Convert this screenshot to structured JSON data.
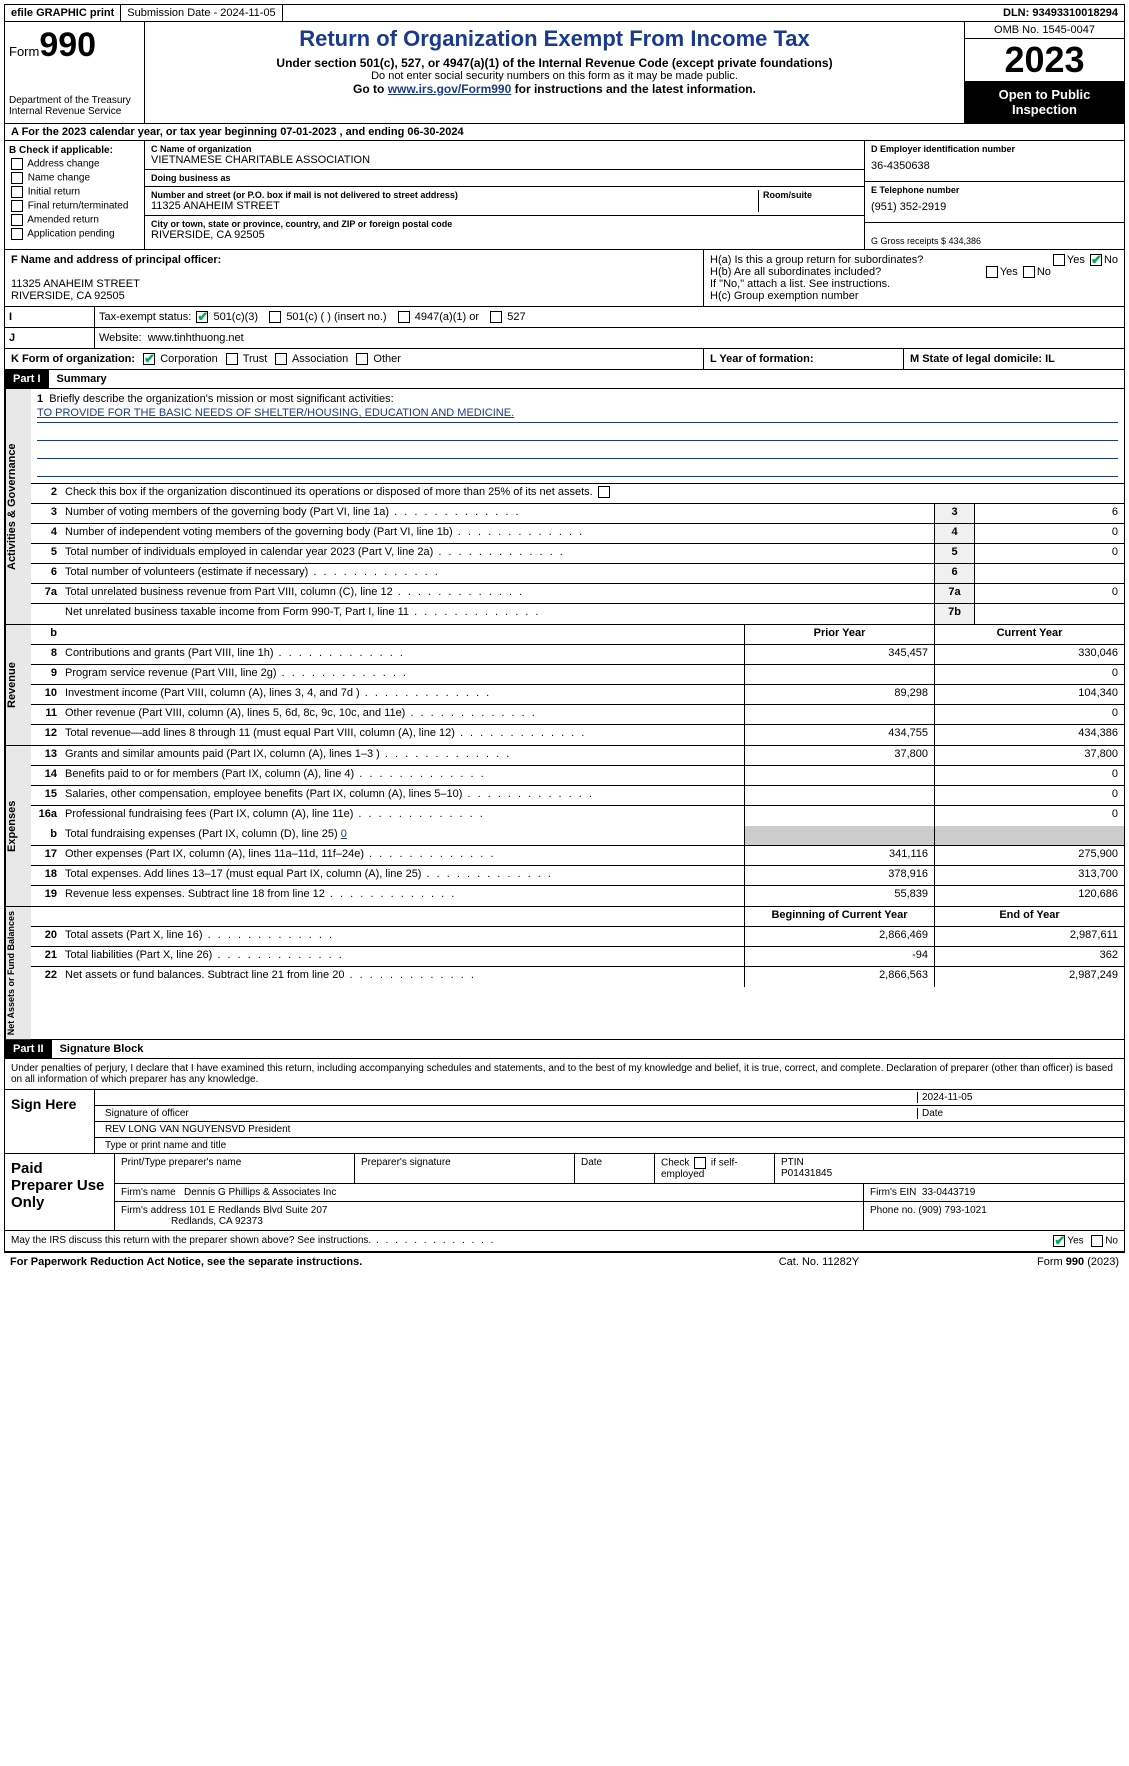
{
  "topbar": {
    "efile": "efile GRAPHIC print",
    "subdate_lbl": "Submission Date - 2024-11-05",
    "dln": "DLN: 93493310018294"
  },
  "header": {
    "form_word": "Form",
    "form_num": "990",
    "title": "Return of Organization Exempt From Income Tax",
    "sub1": "Under section 501(c), 527, or 4947(a)(1) of the Internal Revenue Code (except private foundations)",
    "sub2": "Do not enter social security numbers on this form as it may be made public.",
    "sub3_a": "Go to ",
    "sub3_link": "www.irs.gov/Form990",
    "sub3_b": " for instructions and the latest information.",
    "dept": "Department of the Treasury\nInternal Revenue Service",
    "omb": "OMB No. 1545-0047",
    "year": "2023",
    "open": "Open to Public Inspection"
  },
  "lineA": "A  For the 2023 calendar year, or tax year beginning 07-01-2023    , and ending 06-30-2024",
  "boxB": {
    "hd": "B Check if applicable:",
    "items": [
      "Address change",
      "Name change",
      "Initial return",
      "Final return/terminated",
      "Amended return",
      "Application pending"
    ]
  },
  "boxC": {
    "name_lbl": "C Name of organization",
    "name": "VIETNAMESE CHARITABLE ASSOCIATION",
    "dba_lbl": "Doing business as",
    "dba": "",
    "addr_lbl": "Number and street (or P.O. box if mail is not delivered to street address)",
    "room_lbl": "Room/suite",
    "addr": "11325 ANAHEIM STREET",
    "city_lbl": "City or town, state or province, country, and ZIP or foreign postal code",
    "city": "RIVERSIDE, CA  92505"
  },
  "boxD": {
    "lbl": "D Employer identification number",
    "val": "36-4350638"
  },
  "boxE": {
    "lbl": "E Telephone number",
    "val": "(951) 352-2919"
  },
  "boxG": {
    "lbl": "G Gross receipts $ 434,386"
  },
  "boxF": {
    "lbl": "F  Name and address of principal officer:",
    "l1": "",
    "l2": "11325 ANAHEIM STREET",
    "l3": "RIVERSIDE, CA  92505"
  },
  "boxH": {
    "ha": "H(a)  Is this a group return for subordinates?",
    "hb": "H(b)  Are all subordinates included?",
    "hb2": "If \"No,\" attach a list. See instructions.",
    "hc": "H(c)  Group exemption number",
    "yes": "Yes",
    "no": "No"
  },
  "rowI": {
    "lbl": "I",
    "txt": "Tax-exempt status:",
    "o1": "501(c)(3)",
    "o2": "501(c) (  ) (insert no.)",
    "o3": "4947(a)(1) or",
    "o4": "527"
  },
  "rowJ": {
    "lbl": "J",
    "txt": "Website:",
    "val": "www.tinhthuong.net"
  },
  "rowK": {
    "lbl": "K Form of organization:",
    "o1": "Corporation",
    "o2": "Trust",
    "o3": "Association",
    "o4": "Other",
    "l_lbl": "L Year of formation:",
    "l_val": "",
    "m_lbl": "M State of legal domicile: IL"
  },
  "part1": {
    "hdr": "Part I",
    "title": "Summary"
  },
  "mission_lbl": "Briefly describe the organization's mission or most significant activities:",
  "mission": "TO PROVIDE FOR THE BASIC NEEDS OF SHELTER/HOUSING, EDUCATION AND MEDICINE.",
  "summary": {
    "sideA": "Activities & Governance",
    "l2": "Check this box        if the organization discontinued its operations or disposed of more than 25% of its net assets.",
    "rows_gov": [
      {
        "n": "3",
        "d": "Number of voting members of the governing body (Part VI, line 1a)",
        "bn": "3",
        "v": "6"
      },
      {
        "n": "4",
        "d": "Number of independent voting members of the governing body (Part VI, line 1b)",
        "bn": "4",
        "v": "0"
      },
      {
        "n": "5",
        "d": "Total number of individuals employed in calendar year 2023 (Part V, line 2a)",
        "bn": "5",
        "v": "0"
      },
      {
        "n": "6",
        "d": "Total number of volunteers (estimate if necessary)",
        "bn": "6",
        "v": ""
      },
      {
        "n": "7a",
        "d": "Total unrelated business revenue from Part VIII, column (C), line 12",
        "bn": "7a",
        "v": "0"
      },
      {
        "n": "",
        "d": "Net unrelated business taxable income from Form 990-T, Part I, line 11",
        "bn": "7b",
        "v": ""
      }
    ],
    "hdr_b": "b",
    "hdr_py": "Prior Year",
    "hdr_cy": "Current Year",
    "sideR": "Revenue",
    "rows_rev": [
      {
        "n": "8",
        "d": "Contributions and grants (Part VIII, line 1h)",
        "py": "345,457",
        "cy": "330,046"
      },
      {
        "n": "9",
        "d": "Program service revenue (Part VIII, line 2g)",
        "py": "",
        "cy": "0"
      },
      {
        "n": "10",
        "d": "Investment income (Part VIII, column (A), lines 3, 4, and 7d )",
        "py": "89,298",
        "cy": "104,340"
      },
      {
        "n": "11",
        "d": "Other revenue (Part VIII, column (A), lines 5, 6d, 8c, 9c, 10c, and 11e)",
        "py": "",
        "cy": "0"
      },
      {
        "n": "12",
        "d": "Total revenue—add lines 8 through 11 (must equal Part VIII, column (A), line 12)",
        "py": "434,755",
        "cy": "434,386"
      }
    ],
    "sideE": "Expenses",
    "rows_exp": [
      {
        "n": "13",
        "d": "Grants and similar amounts paid (Part IX, column (A), lines 1–3 )",
        "py": "37,800",
        "cy": "37,800"
      },
      {
        "n": "14",
        "d": "Benefits paid to or for members (Part IX, column (A), line 4)",
        "py": "",
        "cy": "0"
      },
      {
        "n": "15",
        "d": "Salaries, other compensation, employee benefits (Part IX, column (A), lines 5–10)",
        "py": "",
        "cy": "0"
      },
      {
        "n": "16a",
        "d": "Professional fundraising fees (Part IX, column (A), line 11e)",
        "py": "",
        "cy": "0"
      }
    ],
    "l16b_n": "b",
    "l16b": "Total fundraising expenses (Part IX, column (D), line 25) ",
    "l16b_v": "0",
    "rows_exp2": [
      {
        "n": "17",
        "d": "Other expenses (Part IX, column (A), lines 11a–11d, 11f–24e)",
        "py": "341,116",
        "cy": "275,900"
      },
      {
        "n": "18",
        "d": "Total expenses. Add lines 13–17 (must equal Part IX, column (A), line 25)",
        "py": "378,916",
        "cy": "313,700"
      },
      {
        "n": "19",
        "d": "Revenue less expenses. Subtract line 18 from line 12",
        "py": "55,839",
        "cy": "120,686"
      }
    ],
    "sideN": "Net Assets or Fund Balances",
    "hdr_boy": "Beginning of Current Year",
    "hdr_eoy": "End of Year",
    "rows_net": [
      {
        "n": "20",
        "d": "Total assets (Part X, line 16)",
        "py": "2,866,469",
        "cy": "2,987,611"
      },
      {
        "n": "21",
        "d": "Total liabilities (Part X, line 26)",
        "py": "-94",
        "cy": "362"
      },
      {
        "n": "22",
        "d": "Net assets or fund balances. Subtract line 21 from line 20",
        "py": "2,866,563",
        "cy": "2,987,249"
      }
    ]
  },
  "part2": {
    "hdr": "Part II",
    "title": "Signature Block"
  },
  "decl": "Under penalties of perjury, I declare that I have examined this return, including accompanying schedules and statements, and to the best of my knowledge and belief, it is true, correct, and complete. Declaration of preparer (other than officer) is based on all information of which preparer has any knowledge.",
  "sign": {
    "lbl": "Sign Here",
    "date": "2024-11-05",
    "sig_lbl": "Signature of officer",
    "date_lbl": "Date",
    "name": "REV LONG VAN NGUYENSVD  President",
    "name_lbl": "Type or print name and title"
  },
  "prep": {
    "lbl": "Paid Preparer Use Only",
    "h1": "Print/Type preparer's name",
    "h2": "Preparer's signature",
    "h3": "Date",
    "h4a": "Check",
    "h4b": "if self-employed",
    "h5": "PTIN",
    "ptin": "P01431845",
    "firm_lbl": "Firm's name",
    "firm": "Dennis G Phillips & Associates Inc",
    "ein_lbl": "Firm's EIN",
    "ein": "33-0443719",
    "addr_lbl": "Firm's address",
    "addr1": "101 E Redlands Blvd Suite 207",
    "addr2": "Redlands, CA  92373",
    "phone_lbl": "Phone no.",
    "phone": "(909) 793-1021"
  },
  "discuss": "May the IRS discuss this return with the preparer shown above? See instructions.",
  "footer": {
    "f1": "For Paperwork Reduction Act Notice, see the separate instructions.",
    "f2": "Cat. No. 11282Y",
    "f3": "Form 990 (2023)"
  }
}
